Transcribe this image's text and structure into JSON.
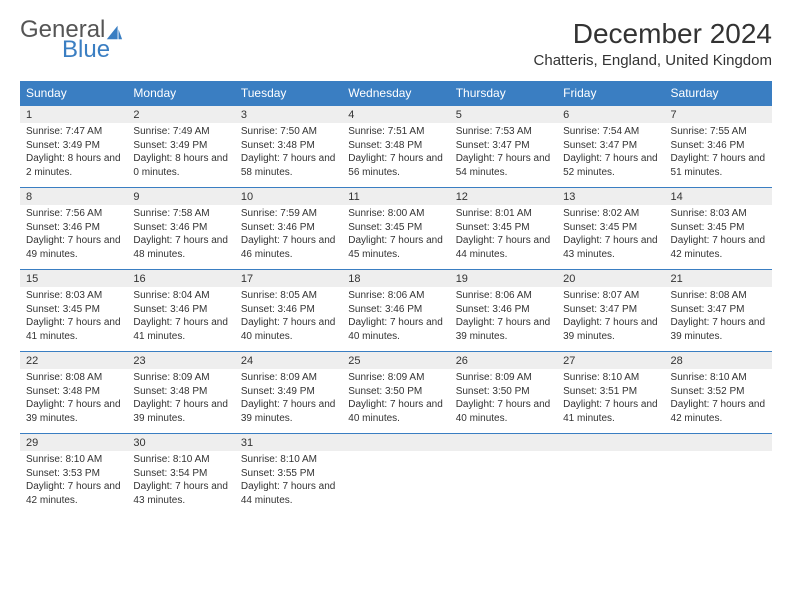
{
  "brand": {
    "word1": "General",
    "word2": "Blue",
    "color_general": "#555555",
    "color_blue": "#3a7ec2",
    "icon_color": "#3a7ec2"
  },
  "header": {
    "month_title": "December 2024",
    "location": "Chatteris, England, United Kingdom"
  },
  "colors": {
    "header_bg": "#3a7ec2",
    "header_text": "#ffffff",
    "daynum_bg": "#eeeeee",
    "row_border": "#3a7ec2",
    "body_text": "#333333",
    "page_bg": "#ffffff"
  },
  "day_headers": [
    "Sunday",
    "Monday",
    "Tuesday",
    "Wednesday",
    "Thursday",
    "Friday",
    "Saturday"
  ],
  "weeks": [
    [
      {
        "num": "1",
        "sunrise": "Sunrise: 7:47 AM",
        "sunset": "Sunset: 3:49 PM",
        "daylight": "Daylight: 8 hours and 2 minutes."
      },
      {
        "num": "2",
        "sunrise": "Sunrise: 7:49 AM",
        "sunset": "Sunset: 3:49 PM",
        "daylight": "Daylight: 8 hours and 0 minutes."
      },
      {
        "num": "3",
        "sunrise": "Sunrise: 7:50 AM",
        "sunset": "Sunset: 3:48 PM",
        "daylight": "Daylight: 7 hours and 58 minutes."
      },
      {
        "num": "4",
        "sunrise": "Sunrise: 7:51 AM",
        "sunset": "Sunset: 3:48 PM",
        "daylight": "Daylight: 7 hours and 56 minutes."
      },
      {
        "num": "5",
        "sunrise": "Sunrise: 7:53 AM",
        "sunset": "Sunset: 3:47 PM",
        "daylight": "Daylight: 7 hours and 54 minutes."
      },
      {
        "num": "6",
        "sunrise": "Sunrise: 7:54 AM",
        "sunset": "Sunset: 3:47 PM",
        "daylight": "Daylight: 7 hours and 52 minutes."
      },
      {
        "num": "7",
        "sunrise": "Sunrise: 7:55 AM",
        "sunset": "Sunset: 3:46 PM",
        "daylight": "Daylight: 7 hours and 51 minutes."
      }
    ],
    [
      {
        "num": "8",
        "sunrise": "Sunrise: 7:56 AM",
        "sunset": "Sunset: 3:46 PM",
        "daylight": "Daylight: 7 hours and 49 minutes."
      },
      {
        "num": "9",
        "sunrise": "Sunrise: 7:58 AM",
        "sunset": "Sunset: 3:46 PM",
        "daylight": "Daylight: 7 hours and 48 minutes."
      },
      {
        "num": "10",
        "sunrise": "Sunrise: 7:59 AM",
        "sunset": "Sunset: 3:46 PM",
        "daylight": "Daylight: 7 hours and 46 minutes."
      },
      {
        "num": "11",
        "sunrise": "Sunrise: 8:00 AM",
        "sunset": "Sunset: 3:45 PM",
        "daylight": "Daylight: 7 hours and 45 minutes."
      },
      {
        "num": "12",
        "sunrise": "Sunrise: 8:01 AM",
        "sunset": "Sunset: 3:45 PM",
        "daylight": "Daylight: 7 hours and 44 minutes."
      },
      {
        "num": "13",
        "sunrise": "Sunrise: 8:02 AM",
        "sunset": "Sunset: 3:45 PM",
        "daylight": "Daylight: 7 hours and 43 minutes."
      },
      {
        "num": "14",
        "sunrise": "Sunrise: 8:03 AM",
        "sunset": "Sunset: 3:45 PM",
        "daylight": "Daylight: 7 hours and 42 minutes."
      }
    ],
    [
      {
        "num": "15",
        "sunrise": "Sunrise: 8:03 AM",
        "sunset": "Sunset: 3:45 PM",
        "daylight": "Daylight: 7 hours and 41 minutes."
      },
      {
        "num": "16",
        "sunrise": "Sunrise: 8:04 AM",
        "sunset": "Sunset: 3:46 PM",
        "daylight": "Daylight: 7 hours and 41 minutes."
      },
      {
        "num": "17",
        "sunrise": "Sunrise: 8:05 AM",
        "sunset": "Sunset: 3:46 PM",
        "daylight": "Daylight: 7 hours and 40 minutes."
      },
      {
        "num": "18",
        "sunrise": "Sunrise: 8:06 AM",
        "sunset": "Sunset: 3:46 PM",
        "daylight": "Daylight: 7 hours and 40 minutes."
      },
      {
        "num": "19",
        "sunrise": "Sunrise: 8:06 AM",
        "sunset": "Sunset: 3:46 PM",
        "daylight": "Daylight: 7 hours and 39 minutes."
      },
      {
        "num": "20",
        "sunrise": "Sunrise: 8:07 AM",
        "sunset": "Sunset: 3:47 PM",
        "daylight": "Daylight: 7 hours and 39 minutes."
      },
      {
        "num": "21",
        "sunrise": "Sunrise: 8:08 AM",
        "sunset": "Sunset: 3:47 PM",
        "daylight": "Daylight: 7 hours and 39 minutes."
      }
    ],
    [
      {
        "num": "22",
        "sunrise": "Sunrise: 8:08 AM",
        "sunset": "Sunset: 3:48 PM",
        "daylight": "Daylight: 7 hours and 39 minutes."
      },
      {
        "num": "23",
        "sunrise": "Sunrise: 8:09 AM",
        "sunset": "Sunset: 3:48 PM",
        "daylight": "Daylight: 7 hours and 39 minutes."
      },
      {
        "num": "24",
        "sunrise": "Sunrise: 8:09 AM",
        "sunset": "Sunset: 3:49 PM",
        "daylight": "Daylight: 7 hours and 39 minutes."
      },
      {
        "num": "25",
        "sunrise": "Sunrise: 8:09 AM",
        "sunset": "Sunset: 3:50 PM",
        "daylight": "Daylight: 7 hours and 40 minutes."
      },
      {
        "num": "26",
        "sunrise": "Sunrise: 8:09 AM",
        "sunset": "Sunset: 3:50 PM",
        "daylight": "Daylight: 7 hours and 40 minutes."
      },
      {
        "num": "27",
        "sunrise": "Sunrise: 8:10 AM",
        "sunset": "Sunset: 3:51 PM",
        "daylight": "Daylight: 7 hours and 41 minutes."
      },
      {
        "num": "28",
        "sunrise": "Sunrise: 8:10 AM",
        "sunset": "Sunset: 3:52 PM",
        "daylight": "Daylight: 7 hours and 42 minutes."
      }
    ],
    [
      {
        "num": "29",
        "sunrise": "Sunrise: 8:10 AM",
        "sunset": "Sunset: 3:53 PM",
        "daylight": "Daylight: 7 hours and 42 minutes."
      },
      {
        "num": "30",
        "sunrise": "Sunrise: 8:10 AM",
        "sunset": "Sunset: 3:54 PM",
        "daylight": "Daylight: 7 hours and 43 minutes."
      },
      {
        "num": "31",
        "sunrise": "Sunrise: 8:10 AM",
        "sunset": "Sunset: 3:55 PM",
        "daylight": "Daylight: 7 hours and 44 minutes."
      },
      {
        "empty": true
      },
      {
        "empty": true
      },
      {
        "empty": true
      },
      {
        "empty": true
      }
    ]
  ]
}
